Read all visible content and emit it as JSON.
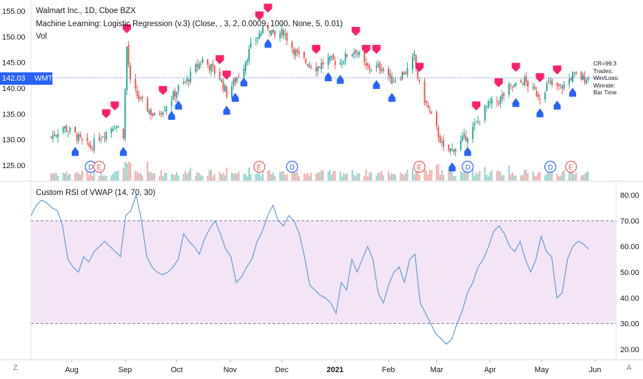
{
  "legend": {
    "symbol": "Walmart Inc., 1D, Cboe BZX",
    "indicator": "Machine Learning: Logistic Regression (v.3) (Close, , 3, 2, 0.0009, 1000, None, 5, 0.01)",
    "volume": "Vol",
    "rsi": "Custom RSI of VWAP (14, 70, 30)"
  },
  "price_tag": {
    "value": "142.03",
    "ticker": "WMT"
  },
  "stats_box": [
    "CR=99.3",
    "Trades:",
    "Win/Loss:",
    "Winrate:",
    "Bar Time"
  ],
  "corner": {
    "left": "Z",
    "right": "A"
  },
  "colors": {
    "up": "#26a69a",
    "down": "#ef5350",
    "buy": "#2962ff",
    "sell": "#ff1f6b",
    "rsi_line": "#5b9bd5",
    "rsi_band": "#f3e5f5",
    "vol_up": "#8fd3cc",
    "vol_down": "#f7a9a7"
  },
  "chart_data": [
    {
      "type": "candlestick",
      "title": "Walmart Inc., 1D, Cboe BZX",
      "x_ticks": [
        "Aug",
        "Sep",
        "Oct",
        "Nov",
        "Dec",
        "2021",
        "Feb",
        "Mar",
        "Apr",
        "May",
        "Jun"
      ],
      "y_ticks": [
        "155.00",
        "150.00",
        "145.00",
        "140.00",
        "135.00",
        "130.00",
        "125.00"
      ],
      "ylim": [
        122.5,
        157
      ],
      "close_path": [
        [
          "Jul 20",
          130.5
        ],
        [
          "Jul 27",
          132.5
        ],
        [
          "Aug 3",
          131
        ],
        [
          "Aug 7",
          129.5
        ],
        [
          "Aug 12",
          128.5
        ],
        [
          "Aug 17",
          130.5
        ],
        [
          "Aug 21",
          131.5
        ],
        [
          "Aug 26",
          133
        ],
        [
          "Aug 31",
          131
        ],
        [
          "Sep 2",
          148
        ],
        [
          "Sep 4",
          141
        ],
        [
          "Sep 9",
          138
        ],
        [
          "Sep 14",
          136
        ],
        [
          "Sep 18",
          134.5
        ],
        [
          "Sep 23",
          136
        ],
        [
          "Sep 28",
          138
        ],
        [
          "Oct 2",
          140
        ],
        [
          "Oct 7",
          141.5
        ],
        [
          "Oct 12",
          144
        ],
        [
          "Oct 16",
          145.5
        ],
        [
          "Oct 21",
          144
        ],
        [
          "Oct 26",
          142
        ],
        [
          "Oct 30",
          139
        ],
        [
          "Nov 4",
          141.5
        ],
        [
          "Nov 9",
          144.5
        ],
        [
          "Nov 13",
          148
        ],
        [
          "Nov 18",
          150.5
        ],
        [
          "Nov 23",
          152
        ],
        [
          "Nov 27",
          150
        ],
        [
          "Dec 2",
          151
        ],
        [
          "Dec 7",
          148
        ],
        [
          "Dec 11",
          146
        ],
        [
          "Dec 16",
          145
        ],
        [
          "Dec 21",
          144
        ],
        [
          "Dec 28",
          145.5
        ],
        [
          "Jan 4",
          145
        ],
        [
          "Jan 8",
          146.5
        ],
        [
          "Jan 13",
          147.5
        ],
        [
          "Jan 19",
          144
        ],
        [
          "Jan 25",
          144
        ],
        [
          "Jan 29",
          144
        ],
        [
          "Feb 3",
          141.5
        ],
        [
          "Feb 8",
          142.5
        ],
        [
          "Feb 12",
          143.5
        ],
        [
          "Feb 16",
          146
        ],
        [
          "Feb 19",
          140.5
        ],
        [
          "Feb 24",
          136
        ],
        [
          "Mar 1",
          132
        ],
        [
          "Mar 5",
          128
        ],
        [
          "Mar 10",
          128
        ],
        [
          "Mar 15",
          129.5
        ],
        [
          "Mar 19",
          131
        ],
        [
          "Mar 24",
          133
        ],
        [
          "Mar 29",
          136
        ],
        [
          "Apr 1",
          137
        ],
        [
          "Apr 6",
          137.5
        ],
        [
          "Apr 12",
          140
        ],
        [
          "Apr 16",
          140.5
        ],
        [
          "Apr 21",
          141.5
        ],
        [
          "Apr 26",
          139.5
        ],
        [
          "Apr 30",
          138.5
        ],
        [
          "May 5",
          141
        ],
        [
          "May 10",
          140
        ],
        [
          "May 14",
          140.5
        ],
        [
          "May 19",
          142.5
        ],
        [
          "May 24",
          142
        ],
        [
          "May 28",
          142.03
        ]
      ],
      "buy_signals": [
        "Aug 3",
        "Aug 31",
        "Sep 28",
        "Oct 2",
        "Oct 30",
        "Nov 4",
        "Nov 9",
        "Nov 23",
        "Dec 28",
        "Jan 4",
        "Jan 25",
        "Feb 3",
        "Mar 10",
        "Mar 19",
        "Apr 16",
        "Apr 30",
        "May 10",
        "May 19"
      ],
      "sell_signals": [
        "Aug 21",
        "Aug 26",
        "Sep 2",
        "Sep 23",
        "Oct 26",
        "Oct 30",
        "Nov 18",
        "Nov 23",
        "Dec 21",
        "Jan 13",
        "Jan 19",
        "Jan 25",
        "Feb 19",
        "Mar 24",
        "Apr 6",
        "Apr 16",
        "Apr 30",
        "May 10"
      ],
      "events": [
        {
          "date": "Aug 12",
          "label": "D",
          "kind": "dividend"
        },
        {
          "date": "Aug 17",
          "label": "E",
          "kind": "earnings"
        },
        {
          "date": "Nov 18",
          "label": "E",
          "kind": "earnings"
        },
        {
          "date": "Dec 7",
          "label": "D",
          "kind": "dividend"
        },
        {
          "date": "Feb 19",
          "label": "E",
          "kind": "earnings"
        },
        {
          "date": "Mar 19",
          "label": "D",
          "kind": "dividend"
        },
        {
          "date": "May 6",
          "label": "D",
          "kind": "dividend"
        },
        {
          "date": "May 18",
          "label": "E",
          "kind": "earnings"
        }
      ],
      "current_price": 142.03
    },
    {
      "type": "line",
      "title": "Custom RSI of VWAP (14, 70, 30)",
      "y_ticks": [
        "80.00",
        "70.00",
        "60.00",
        "50.00",
        "40.00",
        "30.00",
        "20.00"
      ],
      "ylim": [
        18,
        83
      ],
      "bands": {
        "upper": 70,
        "lower": 30
      },
      "values": [
        72,
        76,
        78,
        77,
        75,
        74,
        68,
        55,
        52,
        50,
        56,
        54,
        58,
        60,
        62,
        60,
        58,
        56,
        72,
        74,
        80,
        70,
        56,
        52,
        50,
        49,
        50,
        52,
        55,
        65,
        62,
        60,
        57,
        63,
        67,
        70,
        65,
        59,
        56,
        46,
        48,
        52,
        55,
        62,
        66,
        72,
        76,
        70,
        68,
        72,
        70,
        65,
        56,
        45,
        43,
        41,
        40,
        38,
        34,
        46,
        43,
        55,
        50,
        55,
        60,
        55,
        42,
        38,
        45,
        50,
        52,
        46,
        55,
        57,
        38,
        34,
        30,
        26,
        24,
        22,
        24,
        30,
        35,
        42,
        46,
        52,
        55,
        60,
        66,
        68,
        65,
        60,
        58,
        62,
        55,
        50,
        55,
        64,
        58,
        56,
        40,
        42,
        55,
        60,
        62,
        61,
        59
      ]
    }
  ]
}
